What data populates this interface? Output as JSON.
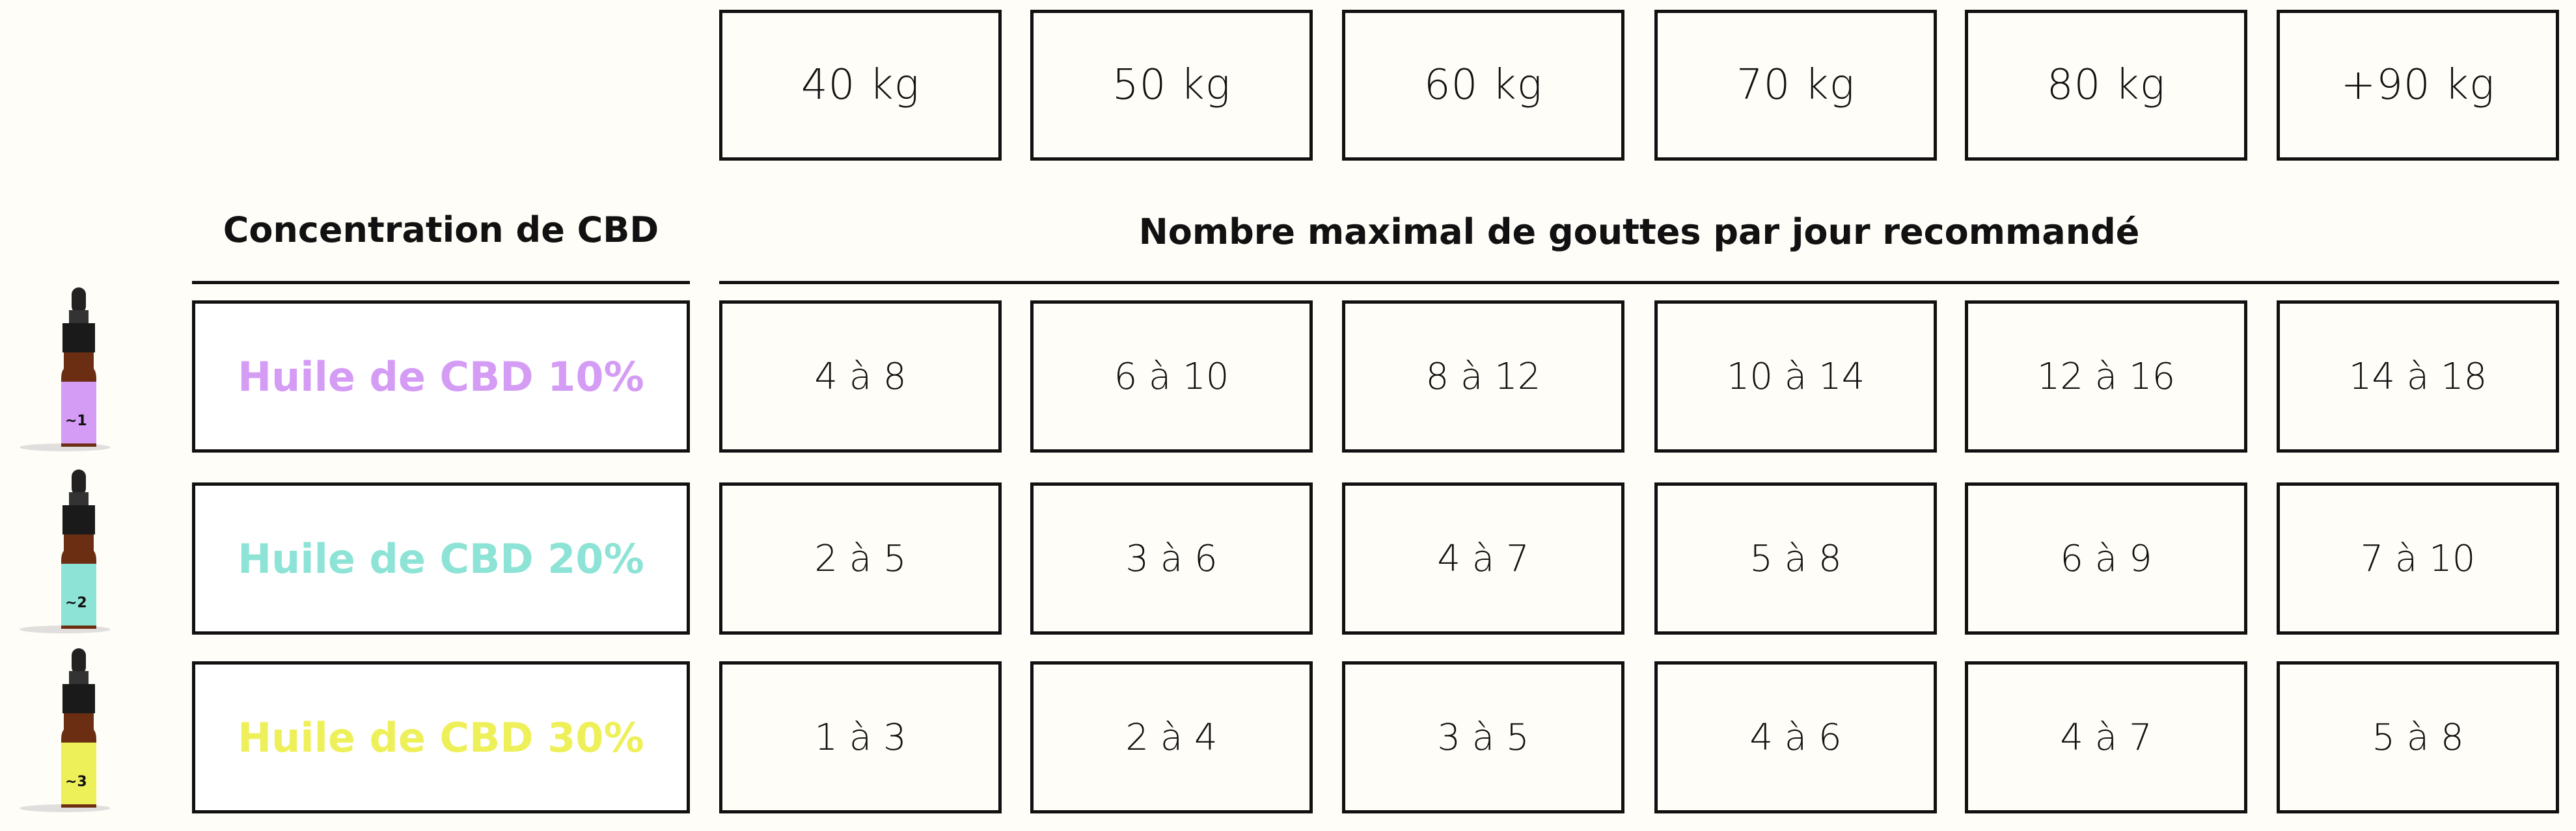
{
  "weights": [
    "40 kg",
    "50 kg",
    "60 kg",
    "70 kg",
    "80 kg",
    "+90 kg"
  ],
  "headings": {
    "concentration": "Concentration de CBD",
    "drops": "Nombre maximal de gouttes par jour recommandé"
  },
  "rows": [
    {
      "label": "Huile de CBD 10%",
      "color": "#d59cf5",
      "bottle_icon": "purple-cbd-bottle",
      "values": [
        "4 à 8",
        "6 à 10",
        "8 à 12",
        "10 à 14",
        "12 à 16",
        "14 à 18"
      ]
    },
    {
      "label": "Huile de CBD 20%",
      "color": "#8de3d5",
      "bottle_icon": "teal-cbd-bottle",
      "values": [
        "2 à 5",
        "3 à 6",
        "4 à 7",
        "5 à 8",
        "6 à 9",
        "7 à 10"
      ]
    },
    {
      "label": "Huile de CBD 30%",
      "color": "#eef05a",
      "bottle_icon": "yellow-cbd-bottle",
      "values": [
        "1 à 3",
        "2 à 4",
        "3 à 5",
        "4 à 6",
        "4 à 7",
        "5 à 8"
      ]
    }
  ]
}
